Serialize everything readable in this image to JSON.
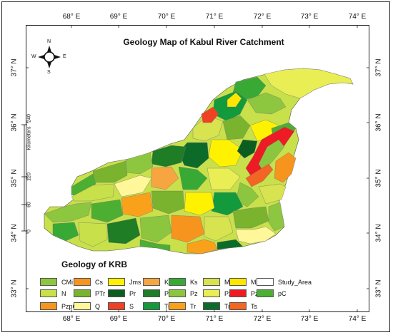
{
  "map": {
    "title": "Geology Map of Kabul River Catchment",
    "legend_title": "Geology of KRB",
    "longitudes": [
      "68° E",
      "69° E",
      "70° E",
      "71° E",
      "72° E",
      "73° E",
      "74° E"
    ],
    "latitudes": [
      "37° N",
      "36° N",
      "35° N",
      "34° N",
      "33° N"
    ],
    "north_arrow": {
      "n": "N",
      "s": "S",
      "e": "E",
      "w": "W"
    },
    "scale_bar": {
      "unit_label": "Kilometers",
      "ticks": [
        "0",
        "60",
        "120",
        "240"
      ]
    }
  },
  "legend": [
    {
      "label": "CMi",
      "color": "#8dc63f"
    },
    {
      "label": "Cs",
      "color": "#f7941d"
    },
    {
      "label": "Jms",
      "color": "#fff200"
    },
    {
      "label": "KJs",
      "color": "#f7a541"
    },
    {
      "label": "Ks",
      "color": "#39a935"
    },
    {
      "label": "Mi",
      "color": "#d7e34f"
    },
    {
      "label": "Mz",
      "color": "#ffe600"
    },
    {
      "label": "Study_Area",
      "color": "#ffffff"
    },
    {
      "label": "N",
      "color": "#c8e04a"
    },
    {
      "label": "PTr",
      "color": "#7ab32e"
    },
    {
      "label": "Pr",
      "color": "#0b5e1f"
    },
    {
      "label": "Prim",
      "color": "#1e7d25"
    },
    {
      "label": "Pz",
      "color": "#8cc63f"
    },
    {
      "label": "Pzi",
      "color": "#e9ee55"
    },
    {
      "label": "Pzl",
      "color": "#ed1c24"
    },
    {
      "label": "pC",
      "color": "#4caf32"
    },
    {
      "label": "PzpC",
      "color": "#f7941d"
    },
    {
      "label": "Q",
      "color": "#fff799"
    },
    {
      "label": "S",
      "color": "#ef4123"
    },
    {
      "label": "Ti",
      "color": "#129a3c"
    },
    {
      "label": "Tr",
      "color": "#f9a11b"
    },
    {
      "label": "Trms",
      "color": "#0d6b2a"
    },
    {
      "label": "Ts",
      "color": "#f26522"
    }
  ]
}
